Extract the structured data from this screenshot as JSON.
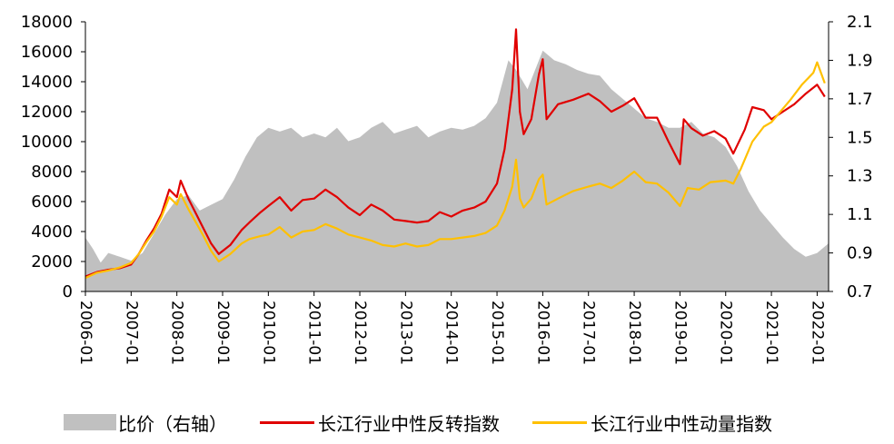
{
  "chart_data": {
    "type": "line",
    "title": "",
    "x_tick_labels": [
      "2006-01",
      "2007-01",
      "2008-01",
      "2009-01",
      "2010-01",
      "2011-01",
      "2012-01",
      "2013-01",
      "2014-01",
      "2015-01",
      "2016-01",
      "2017-01",
      "2018-01",
      "2019-01",
      "2020-01",
      "2021-01",
      "2022-01"
    ],
    "x_range": [
      "2006-01",
      "2022-04"
    ],
    "y_left": {
      "min": 0,
      "max": 18000,
      "ticks": [
        "0",
        "2000",
        "4000",
        "6000",
        "8000",
        "10000",
        "12000",
        "14000",
        "16000",
        "18000"
      ]
    },
    "y_right": {
      "min": 0.7,
      "max": 2.1,
      "ticks": [
        "0.7",
        "0.9",
        "1.1",
        "1.3",
        "1.5",
        "1.7",
        "1.9",
        "2.1"
      ]
    },
    "grid": false,
    "legend_position": "bottom",
    "series": [
      {
        "name": "比价（右轴）",
        "type": "area",
        "axis": "right",
        "color": "#c0c0c0",
        "points": [
          [
            "2006-01",
            0.98
          ],
          [
            "2006-03",
            0.92
          ],
          [
            "2006-05",
            0.85
          ],
          [
            "2006-07",
            0.9
          ],
          [
            "2006-10",
            0.88
          ],
          [
            "2007-01",
            0.86
          ],
          [
            "2007-04",
            0.9
          ],
          [
            "2007-07",
            1.0
          ],
          [
            "2007-10",
            1.1
          ],
          [
            "2008-01",
            1.18
          ],
          [
            "2008-04",
            1.2
          ],
          [
            "2008-07",
            1.12
          ],
          [
            "2008-10",
            1.15
          ],
          [
            "2009-01",
            1.18
          ],
          [
            "2009-04",
            1.28
          ],
          [
            "2009-07",
            1.4
          ],
          [
            "2009-10",
            1.5
          ],
          [
            "2010-01",
            1.55
          ],
          [
            "2010-04",
            1.53
          ],
          [
            "2010-07",
            1.55
          ],
          [
            "2010-10",
            1.5
          ],
          [
            "2011-01",
            1.52
          ],
          [
            "2011-04",
            1.5
          ],
          [
            "2011-07",
            1.55
          ],
          [
            "2011-10",
            1.48
          ],
          [
            "2012-01",
            1.5
          ],
          [
            "2012-04",
            1.55
          ],
          [
            "2012-07",
            1.58
          ],
          [
            "2012-10",
            1.52
          ],
          [
            "2013-01",
            1.54
          ],
          [
            "2013-04",
            1.56
          ],
          [
            "2013-07",
            1.5
          ],
          [
            "2013-10",
            1.53
          ],
          [
            "2014-01",
            1.55
          ],
          [
            "2014-04",
            1.54
          ],
          [
            "2014-07",
            1.56
          ],
          [
            "2014-10",
            1.6
          ],
          [
            "2015-01",
            1.68
          ],
          [
            "2015-04",
            1.9
          ],
          [
            "2015-06",
            1.85
          ],
          [
            "2015-09",
            1.75
          ],
          [
            "2016-01",
            1.95
          ],
          [
            "2016-04",
            1.9
          ],
          [
            "2016-07",
            1.88
          ],
          [
            "2016-10",
            1.85
          ],
          [
            "2017-01",
            1.83
          ],
          [
            "2017-04",
            1.82
          ],
          [
            "2017-07",
            1.75
          ],
          [
            "2017-10",
            1.7
          ],
          [
            "2018-01",
            1.65
          ],
          [
            "2018-04",
            1.6
          ],
          [
            "2018-07",
            1.58
          ],
          [
            "2018-10",
            1.55
          ],
          [
            "2019-01",
            1.55
          ],
          [
            "2019-04",
            1.58
          ],
          [
            "2019-07",
            1.52
          ],
          [
            "2019-10",
            1.5
          ],
          [
            "2020-01",
            1.45
          ],
          [
            "2020-04",
            1.35
          ],
          [
            "2020-07",
            1.22
          ],
          [
            "2020-10",
            1.12
          ],
          [
            "2021-01",
            1.05
          ],
          [
            "2021-04",
            0.98
          ],
          [
            "2021-07",
            0.92
          ],
          [
            "2021-10",
            0.88
          ],
          [
            "2022-01",
            0.9
          ],
          [
            "2022-04",
            0.95
          ]
        ]
      },
      {
        "name": "长江行业中性反转指数",
        "type": "line",
        "axis": "left",
        "color": "#e00000",
        "points": [
          [
            "2006-01",
            1000
          ],
          [
            "2006-04",
            1300
          ],
          [
            "2006-07",
            1450
          ],
          [
            "2006-10",
            1550
          ],
          [
            "2007-01",
            1800
          ],
          [
            "2007-03",
            2500
          ],
          [
            "2007-05",
            3400
          ],
          [
            "2007-07",
            4200
          ],
          [
            "2007-09",
            5200
          ],
          [
            "2007-11",
            6800
          ],
          [
            "2008-01",
            6300
          ],
          [
            "2008-02",
            7400
          ],
          [
            "2008-04",
            6200
          ],
          [
            "2008-06",
            5200
          ],
          [
            "2008-08",
            4200
          ],
          [
            "2008-10",
            3200
          ],
          [
            "2008-12",
            2500
          ],
          [
            "2009-03",
            3100
          ],
          [
            "2009-06",
            4100
          ],
          [
            "2009-08",
            4600
          ],
          [
            "2009-11",
            5300
          ],
          [
            "2010-01",
            5700
          ],
          [
            "2010-04",
            6300
          ],
          [
            "2010-07",
            5400
          ],
          [
            "2010-10",
            6100
          ],
          [
            "2011-01",
            6200
          ],
          [
            "2011-04",
            6800
          ],
          [
            "2011-07",
            6300
          ],
          [
            "2011-10",
            5600
          ],
          [
            "2012-01",
            5100
          ],
          [
            "2012-04",
            5800
          ],
          [
            "2012-07",
            5400
          ],
          [
            "2012-10",
            4800
          ],
          [
            "2013-01",
            4700
          ],
          [
            "2013-04",
            4600
          ],
          [
            "2013-07",
            4700
          ],
          [
            "2013-10",
            5300
          ],
          [
            "2014-01",
            5000
          ],
          [
            "2014-04",
            5400
          ],
          [
            "2014-07",
            5600
          ],
          [
            "2014-10",
            6000
          ],
          [
            "2015-01",
            7200
          ],
          [
            "2015-03",
            9500
          ],
          [
            "2015-05",
            13500
          ],
          [
            "2015-06",
            17500
          ],
          [
            "2015-07",
            12000
          ],
          [
            "2015-08",
            10500
          ],
          [
            "2015-10",
            11500
          ],
          [
            "2015-12",
            14500
          ],
          [
            "2016-01",
            15500
          ],
          [
            "2016-02",
            11500
          ],
          [
            "2016-05",
            12500
          ],
          [
            "2016-09",
            12800
          ],
          [
            "2017-01",
            13200
          ],
          [
            "2017-04",
            12700
          ],
          [
            "2017-07",
            12000
          ],
          [
            "2017-10",
            12400
          ],
          [
            "2018-01",
            12900
          ],
          [
            "2018-04",
            11600
          ],
          [
            "2018-07",
            11600
          ],
          [
            "2018-10",
            10000
          ],
          [
            "2019-01",
            8500
          ],
          [
            "2019-02",
            11500
          ],
          [
            "2019-04",
            10900
          ],
          [
            "2019-07",
            10400
          ],
          [
            "2019-10",
            10700
          ],
          [
            "2020-01",
            10200
          ],
          [
            "2020-03",
            9200
          ],
          [
            "2020-06",
            10800
          ],
          [
            "2020-08",
            12300
          ],
          [
            "2020-11",
            12100
          ],
          [
            "2021-01",
            11500
          ],
          [
            "2021-04",
            12000
          ],
          [
            "2021-07",
            12500
          ],
          [
            "2021-10",
            13200
          ],
          [
            "2022-01",
            13800
          ],
          [
            "2022-03",
            13000
          ]
        ]
      },
      {
        "name": "长江行业中性动量指数",
        "type": "line",
        "axis": "left",
        "color": "#ffc000",
        "points": [
          [
            "2006-01",
            900
          ],
          [
            "2006-04",
            1250
          ],
          [
            "2006-07",
            1400
          ],
          [
            "2006-10",
            1600
          ],
          [
            "2007-01",
            1900
          ],
          [
            "2007-03",
            2500
          ],
          [
            "2007-05",
            3300
          ],
          [
            "2007-07",
            4000
          ],
          [
            "2007-09",
            5000
          ],
          [
            "2007-11",
            6300
          ],
          [
            "2008-01",
            5800
          ],
          [
            "2008-02",
            6500
          ],
          [
            "2008-04",
            5500
          ],
          [
            "2008-06",
            4600
          ],
          [
            "2008-08",
            3700
          ],
          [
            "2008-10",
            2700
          ],
          [
            "2008-12",
            2000
          ],
          [
            "2009-03",
            2500
          ],
          [
            "2009-06",
            3200
          ],
          [
            "2009-08",
            3500
          ],
          [
            "2009-11",
            3700
          ],
          [
            "2010-01",
            3800
          ],
          [
            "2010-04",
            4300
          ],
          [
            "2010-07",
            3600
          ],
          [
            "2010-10",
            4000
          ],
          [
            "2011-01",
            4100
          ],
          [
            "2011-04",
            4500
          ],
          [
            "2011-07",
            4200
          ],
          [
            "2011-10",
            3800
          ],
          [
            "2012-01",
            3600
          ],
          [
            "2012-04",
            3400
          ],
          [
            "2012-07",
            3100
          ],
          [
            "2012-10",
            3000
          ],
          [
            "2013-01",
            3200
          ],
          [
            "2013-04",
            3000
          ],
          [
            "2013-07",
            3100
          ],
          [
            "2013-10",
            3500
          ],
          [
            "2014-01",
            3500
          ],
          [
            "2014-04",
            3600
          ],
          [
            "2014-07",
            3700
          ],
          [
            "2014-10",
            3900
          ],
          [
            "2015-01",
            4400
          ],
          [
            "2015-03",
            5400
          ],
          [
            "2015-05",
            7000
          ],
          [
            "2015-06",
            8800
          ],
          [
            "2015-07",
            6200
          ],
          [
            "2015-08",
            5600
          ],
          [
            "2015-10",
            6200
          ],
          [
            "2015-12",
            7500
          ],
          [
            "2016-01",
            7800
          ],
          [
            "2016-02",
            5800
          ],
          [
            "2016-05",
            6200
          ],
          [
            "2016-09",
            6700
          ],
          [
            "2017-01",
            7000
          ],
          [
            "2017-04",
            7200
          ],
          [
            "2017-07",
            6900
          ],
          [
            "2017-10",
            7400
          ],
          [
            "2018-01",
            8000
          ],
          [
            "2018-04",
            7300
          ],
          [
            "2018-07",
            7200
          ],
          [
            "2018-10",
            6600
          ],
          [
            "2019-01",
            5700
          ],
          [
            "2019-03",
            6900
          ],
          [
            "2019-06",
            6800
          ],
          [
            "2019-09",
            7300
          ],
          [
            "2020-01",
            7400
          ],
          [
            "2020-03",
            7200
          ],
          [
            "2020-05",
            8200
          ],
          [
            "2020-08",
            10000
          ],
          [
            "2020-11",
            11000
          ],
          [
            "2021-01",
            11300
          ],
          [
            "2021-03",
            11900
          ],
          [
            "2021-06",
            12800
          ],
          [
            "2021-09",
            13800
          ],
          [
            "2021-12",
            14600
          ],
          [
            "2022-01",
            15300
          ],
          [
            "2022-03",
            13900
          ]
        ]
      }
    ]
  }
}
